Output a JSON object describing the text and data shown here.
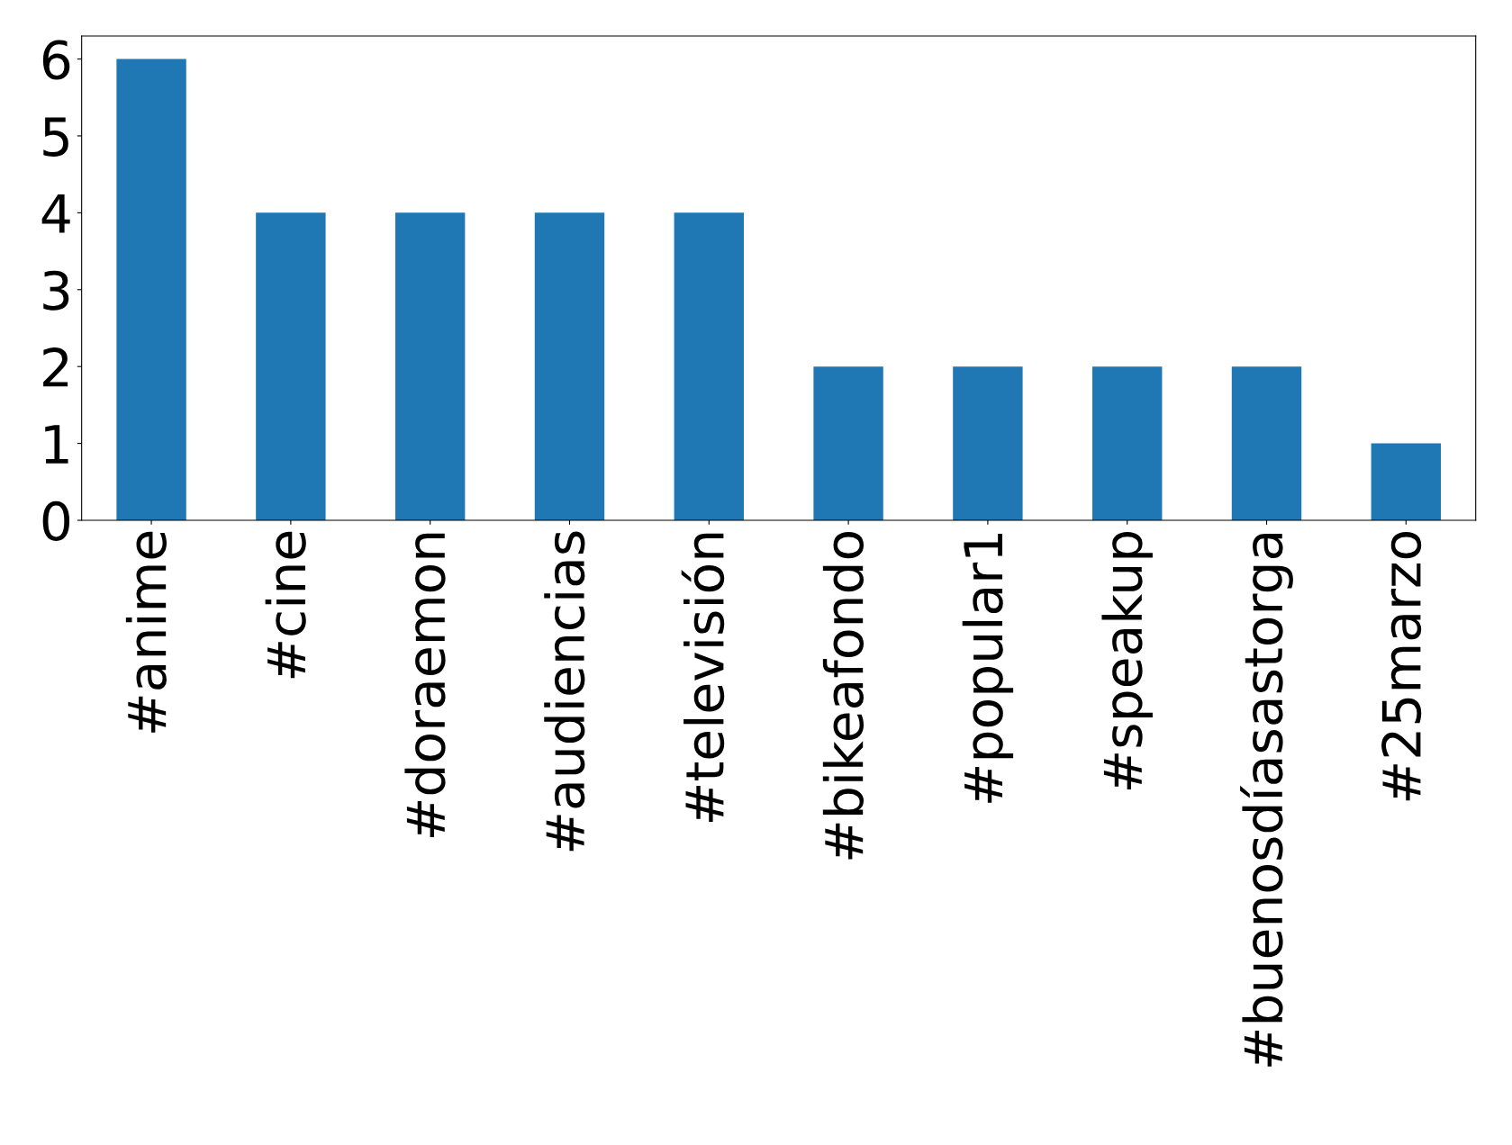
{
  "chart_data": {
    "type": "bar",
    "categories": [
      "#anime",
      "#cine",
      "#doraemon",
      "#audiencias",
      "#televisión",
      "#bikeafondo",
      "#popular1",
      "#speakup",
      "#buenosdíasastorga",
      "#25marzo"
    ],
    "values": [
      6,
      4,
      4,
      4,
      4,
      2,
      2,
      2,
      2,
      1
    ],
    "color": "#1f77b4",
    "ylim": [
      0,
      6.3
    ],
    "yticks": [
      0,
      1,
      2,
      3,
      4,
      5,
      6
    ],
    "grid": false,
    "legend": false
  }
}
